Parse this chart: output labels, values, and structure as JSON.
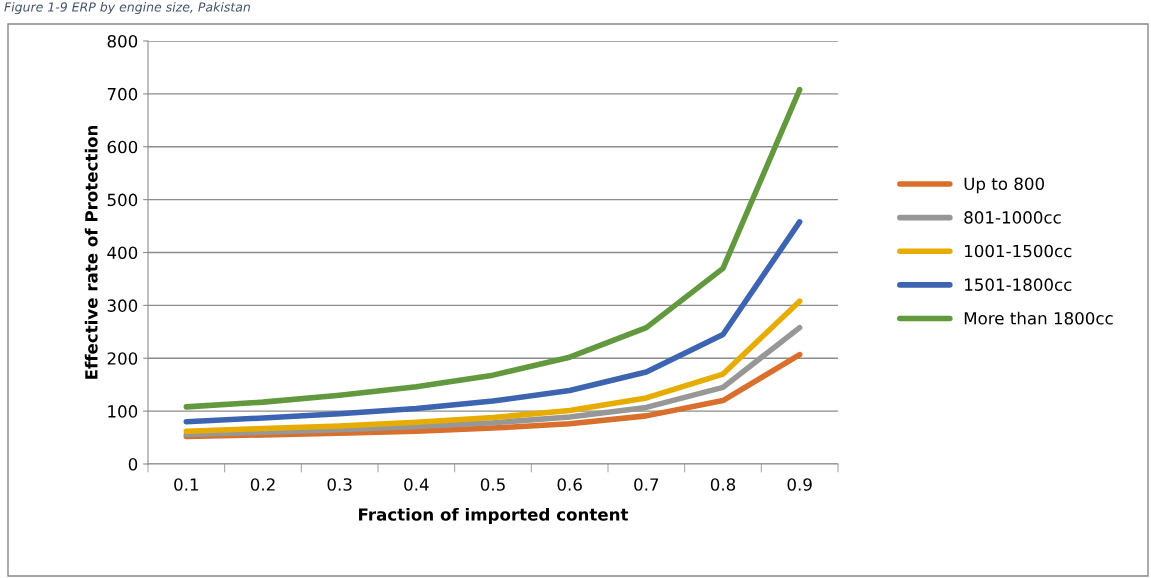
{
  "chart_data": {
    "type": "line",
    "title": "Figure 1-9 ERP by engine size, Pakistan",
    "xlabel": "Fraction of imported content",
    "ylabel": "Effective rate of Protection",
    "categories": [
      "0.1",
      "0.2",
      "0.3",
      "0.4",
      "0.5",
      "0.6",
      "0.7",
      "0.8",
      "0.9"
    ],
    "series": [
      {
        "name": "Up to 800",
        "color": "#d86f2c",
        "values": [
          52,
          55,
          58,
          62,
          68,
          76,
          91,
          120,
          207
        ]
      },
      {
        "name": "801-1000cc",
        "color": "#979797",
        "values": [
          56,
          60,
          65,
          71,
          78,
          89,
          107,
          145,
          258
        ]
      },
      {
        "name": "1001-1500cc",
        "color": "#e6ad00",
        "values": [
          62,
          67,
          72,
          79,
          88,
          101,
          125,
          170,
          308
        ]
      },
      {
        "name": "1501-1800cc",
        "color": "#3c64b0",
        "values": [
          80,
          87,
          95,
          105,
          119,
          139,
          174,
          245,
          458
        ]
      },
      {
        "name": "More than 1800cc",
        "color": "#62993e",
        "values": [
          108,
          117,
          130,
          146,
          168,
          202,
          258,
          370,
          708
        ]
      }
    ],
    "ylim": [
      0,
      800
    ],
    "yticks": [
      0,
      100,
      200,
      300,
      400,
      500,
      600,
      700,
      800
    ],
    "grid": "y",
    "legend": "right",
    "marker": "none",
    "line_style": "solid"
  }
}
